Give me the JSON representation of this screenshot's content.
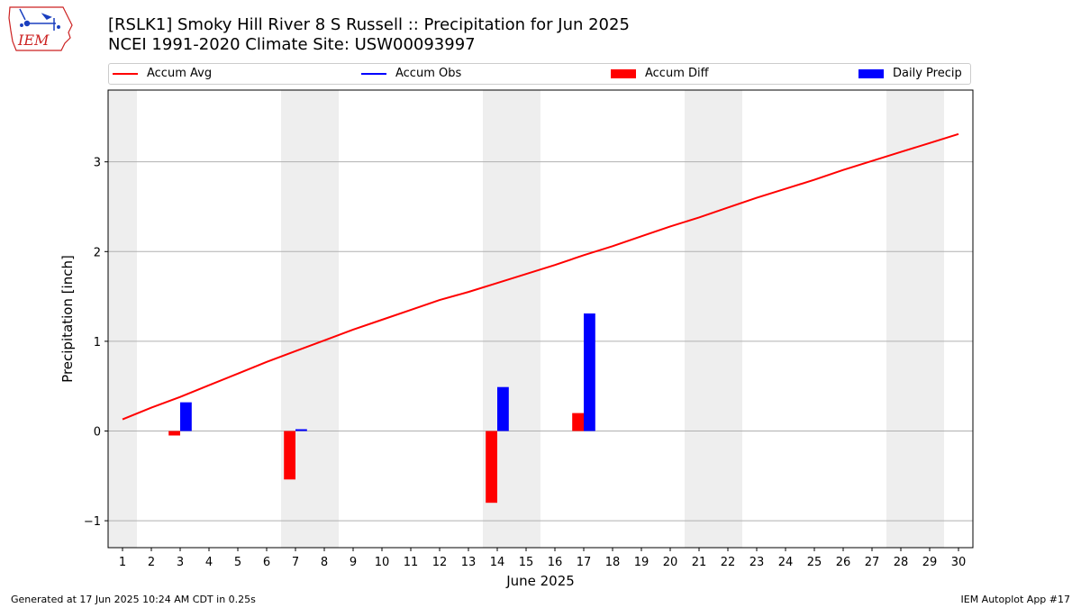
{
  "header": {
    "title_line1": "[RSLK1] Smoky Hill River 8 S Russell :: Precipitation for Jun 2025",
    "title_line2": "NCEI 1991-2020 Climate Site: USW00093997",
    "logo_text": "IEM"
  },
  "footer": {
    "generated": "Generated at 17 Jun 2025 10:24 AM CDT in 0.25s",
    "app": "IEM Autoplot App #17"
  },
  "colors": {
    "avg": "#ff0000",
    "obs": "#0000ff",
    "diff": "#ff0000",
    "daily": "#0000ff",
    "weekend": "#eeeeee",
    "grid": "#b0b0b0"
  },
  "chart_data": {
    "type": "bar",
    "xlabel": "June 2025",
    "ylabel": "Precipitation [inch]",
    "xlim": [
      0.5,
      30.5
    ],
    "ylim": [
      -1.3,
      3.8
    ],
    "yticks": [
      -1,
      0,
      1,
      2,
      3
    ],
    "ytick_labels": [
      "−1",
      "0",
      "1",
      "2",
      "3"
    ],
    "grid": "horizontal",
    "legend": [
      "Accum Avg",
      "Accum Obs",
      "Accum Diff",
      "Daily Precip"
    ],
    "days": [
      1,
      2,
      3,
      4,
      5,
      6,
      7,
      8,
      9,
      10,
      11,
      12,
      13,
      14,
      15,
      16,
      17,
      18,
      19,
      20,
      21,
      22,
      23,
      24,
      25,
      26,
      27,
      28,
      29,
      30
    ],
    "weekend_spans": [
      [
        0.5,
        1.5
      ],
      [
        6.5,
        8.5
      ],
      [
        13.5,
        15.5
      ],
      [
        20.5,
        22.5
      ],
      [
        27.5,
        29.5
      ]
    ],
    "series": [
      {
        "name": "Accum Avg",
        "kind": "line",
        "values": [
          0.13,
          0.26,
          0.38,
          0.51,
          0.64,
          0.77,
          0.89,
          1.01,
          1.13,
          1.24,
          1.35,
          1.46,
          1.55,
          1.65,
          1.75,
          1.85,
          1.96,
          2.06,
          2.17,
          2.28,
          2.38,
          2.49,
          2.6,
          2.7,
          2.8,
          2.91,
          3.01,
          3.11,
          3.21,
          3.31
        ]
      },
      {
        "name": "Accum Obs",
        "kind": "line",
        "days": [],
        "values": []
      },
      {
        "name": "Accum Diff",
        "kind": "bar",
        "days": [
          3,
          7,
          14,
          17
        ],
        "values": [
          -0.05,
          -0.54,
          -0.8,
          0.2
        ]
      },
      {
        "name": "Daily Precip",
        "kind": "bar",
        "days": [
          3,
          7,
          14,
          17
        ],
        "values": [
          0.32,
          0.02,
          0.49,
          1.31
        ]
      }
    ]
  }
}
